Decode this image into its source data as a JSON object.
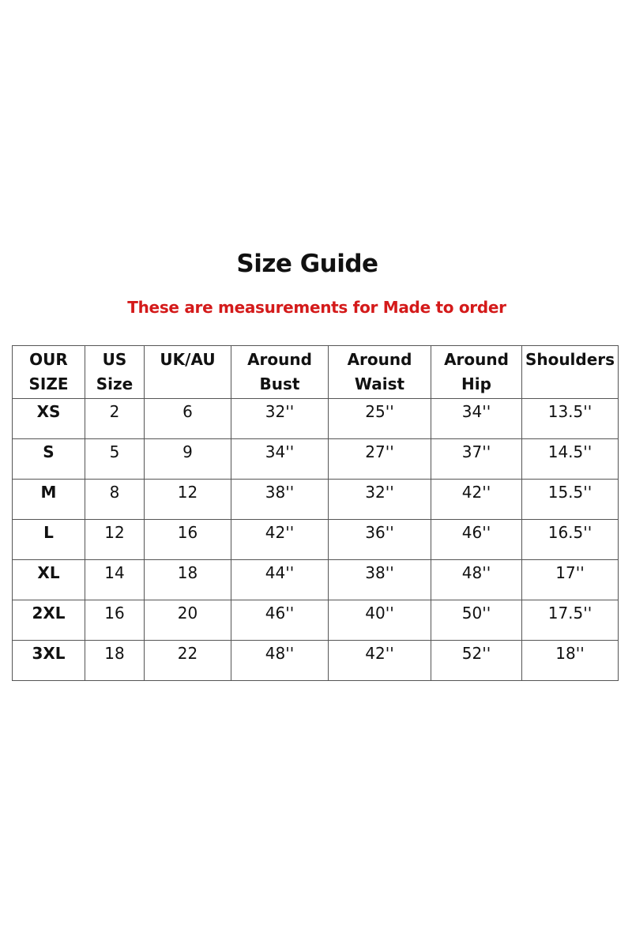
{
  "title": "Size Guide",
  "subtitle": "These are measurements for Made to order",
  "colors": {
    "subtitle": "#d41a1a",
    "border": "#555555"
  },
  "table": {
    "headers": [
      [
        "OUR",
        "SIZE"
      ],
      [
        "US",
        "Size"
      ],
      [
        "UK/AU",
        ""
      ],
      [
        "Around",
        "Bust"
      ],
      [
        "Around",
        "Waist"
      ],
      [
        "Around",
        "Hip"
      ],
      [
        "Shoulders",
        ""
      ]
    ],
    "rows": [
      [
        "XS",
        "2",
        "6",
        "32''",
        "25''",
        "34''",
        "13.5''"
      ],
      [
        "S",
        "5",
        "9",
        "34''",
        "27''",
        "37''",
        "14.5''"
      ],
      [
        "M",
        "8",
        "12",
        "38''",
        "32''",
        "42''",
        "15.5''"
      ],
      [
        "L",
        "12",
        "16",
        "42''",
        "36''",
        "46''",
        "16.5''"
      ],
      [
        "XL",
        "14",
        "18",
        "44''",
        "38''",
        "48''",
        "17''"
      ],
      [
        "2XL",
        "16",
        "20",
        "46''",
        "40''",
        "50''",
        "17.5''"
      ],
      [
        "3XL",
        "18",
        "22",
        "48''",
        "42''",
        "52''",
        "18''"
      ]
    ]
  }
}
